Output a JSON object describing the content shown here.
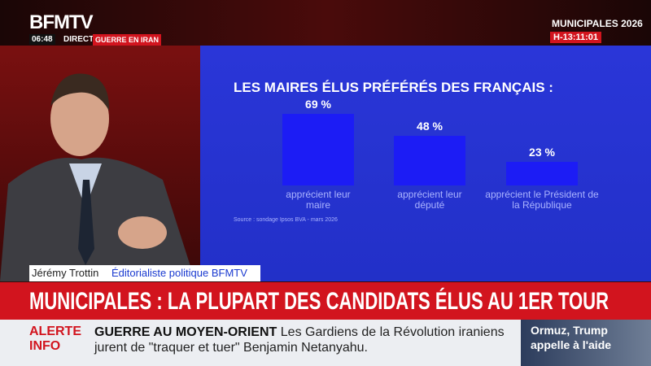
{
  "header": {
    "logo": "BFMTV",
    "time": "06:48",
    "live": "DIRECT",
    "topic": "GUERRE EN IRAN",
    "event": "MUNICIPALES 2026",
    "countdown": "H-13:11:01"
  },
  "chart_data": {
    "type": "bar",
    "title": "LES MAIRES ÉLUS PRÉFÉRÉS DES FRANÇAIS :",
    "categories": [
      "apprécient leur maire",
      "apprécient leur député",
      "apprécient le Président de la République"
    ],
    "values": [
      69,
      48,
      23
    ],
    "value_labels": [
      "69 %",
      "48 %",
      "23 %"
    ],
    "color": "#1c1cf5",
    "source": "Source : sondage Ipsos BVA - mars 2026"
  },
  "lower_third": {
    "name": "Jérémy Trottin",
    "role": "Éditorialiste politique BFMTV"
  },
  "headline": "MUNICIPALES : LA PLUPART DES CANDIDATS ÉLUS AU 1ER TOUR",
  "ticker": {
    "alert": [
      "ALERTE",
      "INFO"
    ],
    "topic": "GUERRE AU MOYEN-ORIENT",
    "text": "Les Gardiens de la Révolution iraniens jurent de \"traquer et tuer\" Benjamin Netanyahu."
  },
  "thumbnail": {
    "caption": "Ormuz, Trump appelle à l'aide"
  }
}
